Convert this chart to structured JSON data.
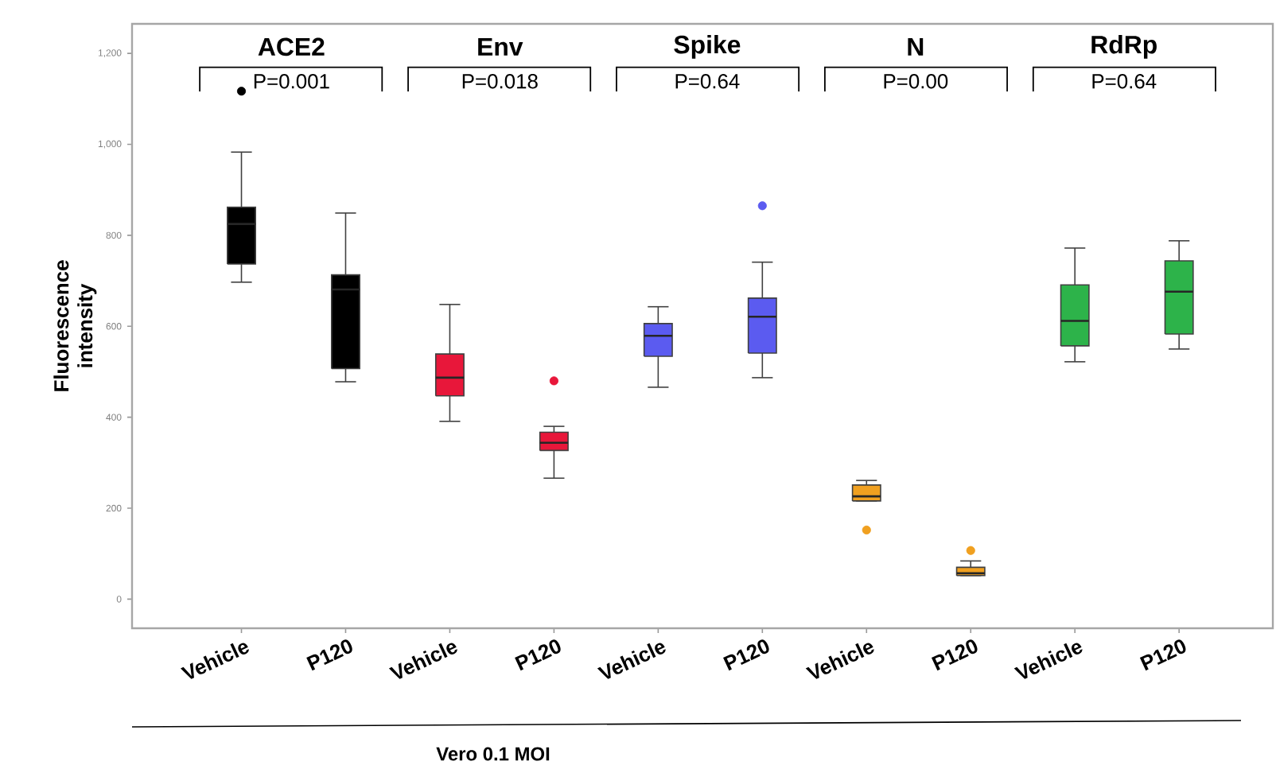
{
  "chart_data": {
    "type": "box",
    "ylabel": "Fluorescence intensity",
    "xlabel": "Vero 0.1 MOI",
    "categories": [
      "Vehicle",
      "P120",
      "Vehicle",
      "P120",
      "Vehicle",
      "P120",
      "Vehicle",
      "P120",
      "Vehicle",
      "P120"
    ],
    "colors": [
      "#000000",
      "#000000",
      "#e8173a",
      "#e8173a",
      "#5b5bf0",
      "#5b5bf0",
      "#f0a020",
      "#f0a020",
      "#2db34a",
      "#2db34a"
    ],
    "boxes": [
      {
        "low": 697,
        "q1": 737,
        "median": 825,
        "q3": 862,
        "high": 983,
        "outliers": [
          1117
        ]
      },
      {
        "low": 478,
        "q1": 507,
        "median": 681,
        "q3": 713,
        "high": 849
      },
      {
        "low": 391,
        "q1": 447,
        "median": 487,
        "q3": 539,
        "high": 648
      },
      {
        "low": 266,
        "q1": 327,
        "median": 344,
        "q3": 367,
        "high": 380,
        "outliers": [
          480
        ]
      },
      {
        "low": 466,
        "q1": 534,
        "median": 579,
        "q3": 606,
        "high": 643
      },
      {
        "low": 487,
        "q1": 541,
        "median": 621,
        "q3": 662,
        "high": 741,
        "outliers": [
          865
        ]
      },
      {
        "low": 216,
        "q1": 216,
        "median": 226,
        "q3": 251,
        "high": 261,
        "outliers": [
          152
        ]
      },
      {
        "low": 52,
        "q1": 52,
        "median": 57,
        "q3": 70,
        "high": 84,
        "outliers": [
          107
        ]
      },
      {
        "low": 522,
        "q1": 557,
        "median": 612,
        "q3": 691,
        "high": 772
      },
      {
        "low": 550,
        "q1": 583,
        "median": 676,
        "q3": 744,
        "high": 788
      }
    ],
    "ylim": [
      -64,
      1265
    ],
    "yticks": [
      0,
      200,
      400,
      600,
      800,
      {
        "value": 1000,
        "label": "1,000"
      },
      {
        "value": 1200,
        "label": "1,200"
      }
    ],
    "annotations": [
      "ACE2",
      "P=0.001",
      "Env",
      "P=0.018",
      "Spike",
      "P=0.64",
      "N",
      "P=0.00",
      "RdRp",
      "P=0.64"
    ]
  }
}
